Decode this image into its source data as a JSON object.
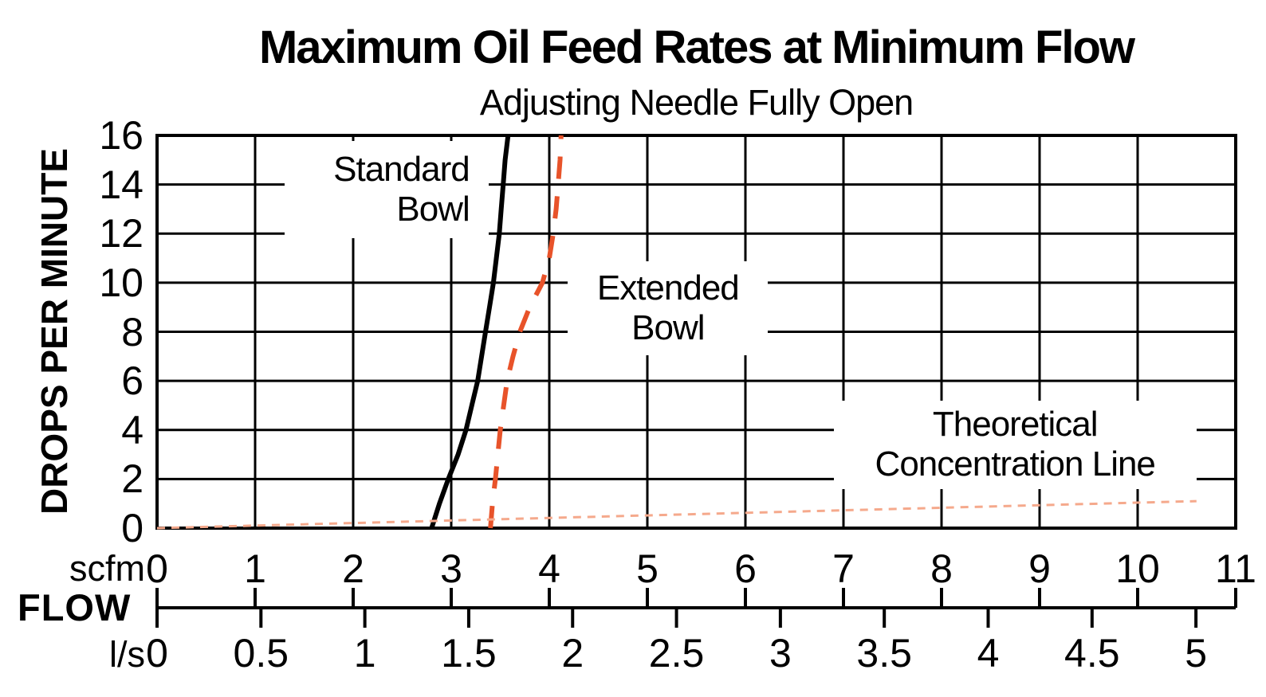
{
  "chart_data": {
    "type": "line",
    "title": "Maximum Oil Feed Rates at Minimum Flow",
    "subtitle": "Adjusting Needle Fully Open",
    "ylabel": "DROPS PER MINUTE",
    "xlabel": "FLOW",
    "ylim": [
      0,
      16
    ],
    "y_ticks": [
      16,
      14,
      12,
      10,
      8,
      6,
      4,
      2,
      0
    ],
    "grid": {
      "x_step": 1,
      "y_step": 2,
      "on": true,
      "color": "#000000"
    },
    "x_axes": [
      {
        "unit": "scfm",
        "lim": [
          0,
          11
        ],
        "ticks": [
          0,
          1,
          2,
          3,
          4,
          5,
          6,
          7,
          8,
          9,
          10,
          11
        ]
      },
      {
        "unit": "l/s",
        "lim": [
          0,
          5
        ],
        "ticks": [
          0,
          0.5,
          1,
          1.5,
          2,
          2.5,
          3,
          3.5,
          4,
          4.5,
          5
        ],
        "scfm_per_unit": 2.1189
      }
    ],
    "series": [
      {
        "id": "standard-bowl",
        "name": "Standard Bowl",
        "line": "solid",
        "color": "#000000",
        "width": 6,
        "points": [
          [
            2.8,
            0
          ],
          [
            2.88,
            1
          ],
          [
            2.97,
            2
          ],
          [
            3.07,
            3
          ],
          [
            3.15,
            4
          ],
          [
            3.21,
            5
          ],
          [
            3.27,
            6
          ],
          [
            3.31,
            7
          ],
          [
            3.35,
            8
          ],
          [
            3.39,
            9
          ],
          [
            3.43,
            10
          ],
          [
            3.46,
            11
          ],
          [
            3.49,
            12
          ],
          [
            3.51,
            13
          ],
          [
            3.53,
            14
          ],
          [
            3.55,
            15
          ],
          [
            3.58,
            16
          ]
        ]
      },
      {
        "id": "extended-bowl",
        "name": "Extended Bowl",
        "line": "dashed",
        "color": "#E8532A",
        "width": 6,
        "points": [
          [
            3.4,
            0
          ],
          [
            3.42,
            1
          ],
          [
            3.45,
            2
          ],
          [
            3.5,
            4
          ],
          [
            3.57,
            6
          ],
          [
            3.63,
            7
          ],
          [
            3.7,
            8
          ],
          [
            3.8,
            9
          ],
          [
            3.93,
            10
          ],
          [
            4.0,
            11
          ],
          [
            4.04,
            12
          ],
          [
            4.07,
            13
          ],
          [
            4.09,
            14
          ],
          [
            4.11,
            15
          ],
          [
            4.12,
            16
          ]
        ]
      },
      {
        "id": "theoretical-concentration-line",
        "name": "Theoretical Concentration Line",
        "line": "fine-dashed",
        "color": "#F5A98C",
        "width": 3,
        "points": [
          [
            0,
            0
          ],
          [
            10.6,
            1.1
          ]
        ]
      }
    ],
    "annotations": [
      {
        "id": "standard-bowl",
        "lines": [
          "Standard",
          "Bowl"
        ],
        "align": "right",
        "box_scfm": [
          1.3,
          3.38
        ],
        "box_drops": [
          11.8,
          15.78
        ]
      },
      {
        "id": "extended-bowl",
        "lines": [
          "Extended",
          "Bowl"
        ],
        "align": "center",
        "box_scfm": [
          4.19,
          6.23
        ],
        "box_drops": [
          7.05,
          10.88
        ]
      },
      {
        "id": "theoretical-line",
        "lines": [
          "Theoretical",
          "Concentration Line"
        ],
        "align": "center",
        "box_scfm": [
          6.9,
          10.6
        ],
        "box_drops": [
          1.6,
          5.2
        ]
      }
    ]
  }
}
